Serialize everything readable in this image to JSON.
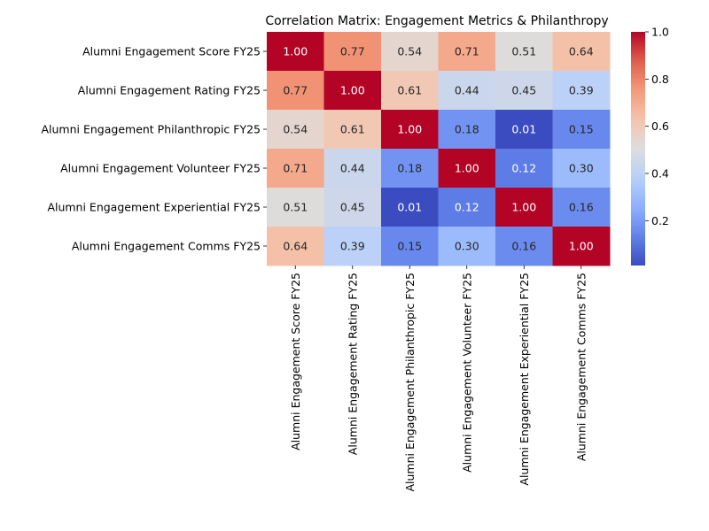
{
  "chart_data": {
    "type": "heatmap",
    "title": "Correlation Matrix: Engagement Metrics & Philanthropy",
    "row_labels": [
      "Alumni Engagement Score FY25",
      "Alumni Engagement Rating FY25",
      "Alumni Engagement Philanthropic FY25",
      "Alumni Engagement Volunteer FY25",
      "Alumni Engagement Experiential FY25",
      "Alumni Engagement Comms FY25"
    ],
    "col_labels": [
      "Alumni Engagement Score FY25",
      "Alumni Engagement Rating FY25",
      "Alumni Engagement Philanthropic FY25",
      "Alumni Engagement Volunteer FY25",
      "Alumni Engagement Experiential FY25",
      "Alumni Engagement Comms FY25"
    ],
    "values": [
      [
        1.0,
        0.77,
        0.54,
        0.71,
        0.51,
        0.64
      ],
      [
        0.77,
        1.0,
        0.61,
        0.44,
        0.45,
        0.39
      ],
      [
        0.54,
        0.61,
        1.0,
        0.18,
        0.01,
        0.15
      ],
      [
        0.71,
        0.44,
        0.18,
        1.0,
        0.12,
        0.3
      ],
      [
        0.51,
        0.45,
        0.01,
        0.12,
        1.0,
        0.16
      ],
      [
        0.64,
        0.39,
        0.15,
        0.3,
        0.16,
        1.0
      ]
    ],
    "colormap": "coolwarm",
    "color_range": [
      0.01,
      1.0
    ],
    "colorbar_ticks": [
      0.2,
      0.4,
      0.6,
      0.8,
      1.0
    ],
    "colorbar_tick_labels": [
      "0.2",
      "0.4",
      "0.6",
      "0.8",
      "1.0"
    ],
    "value_format": "2 decimals",
    "annotations": true
  }
}
